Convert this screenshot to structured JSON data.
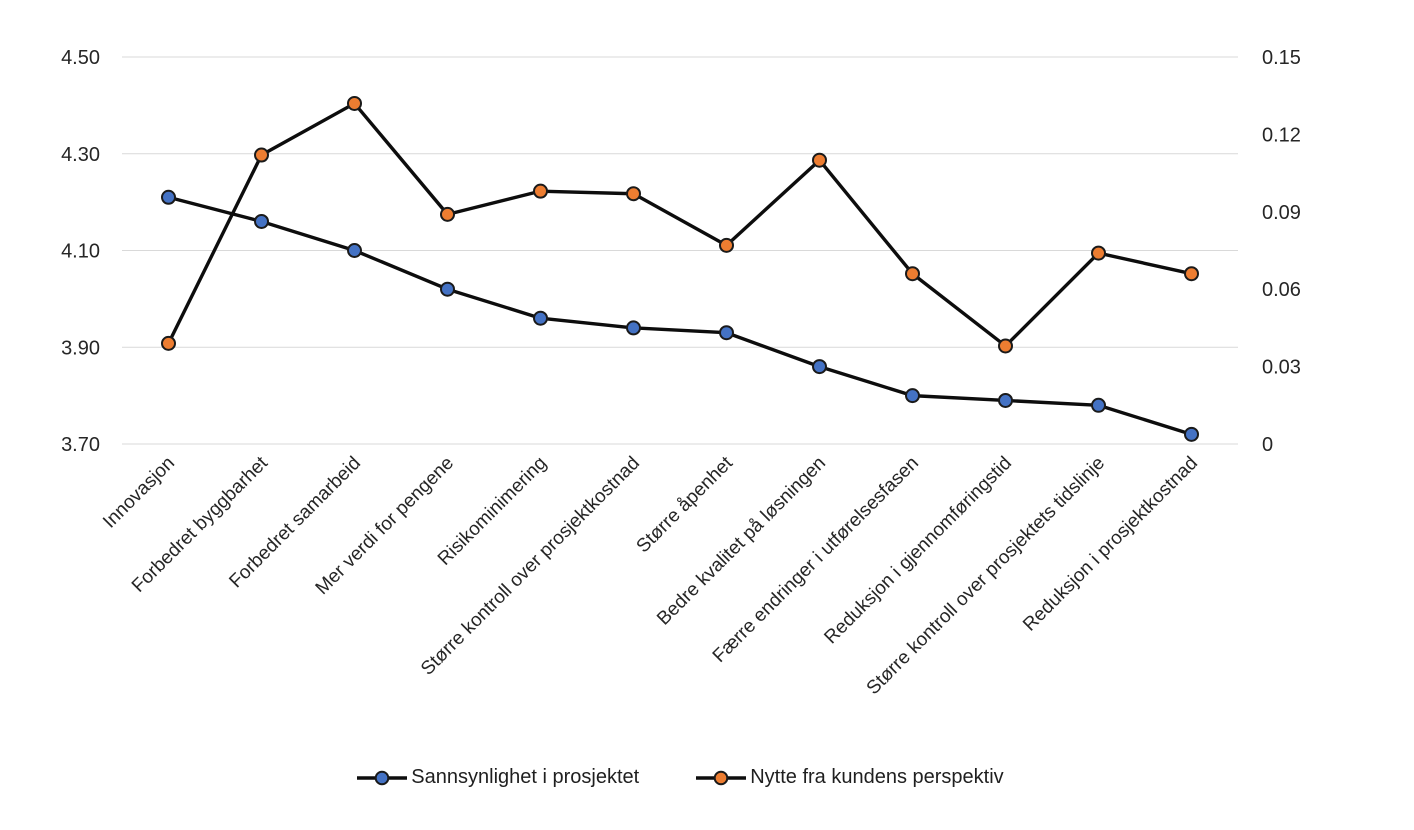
{
  "chart_data": {
    "type": "line",
    "title": "",
    "xlabel": "",
    "ylabel": "",
    "categories": [
      "Innovasjon",
      "Forbedret byggbarhet",
      "Forbedret samarbeid",
      "Mer verdi for pengene",
      "Risikominimering",
      "Større kontroll over prosjektkostnad",
      "Større åpenhet",
      "Bedre kvalitet på løsningen",
      "Færre endringer i utførelsesfasen",
      "Reduksjon i gjennomføringstid",
      "Større kontroll over prosjektets tidslinje",
      "Reduksjon i prosjektkostnad"
    ],
    "series": [
      {
        "name": "Sannsynlighet i prosjektet",
        "axis": "left",
        "marker_color": "#4472C4",
        "line_color": "#0d0d0d",
        "values": [
          4.21,
          4.16,
          4.1,
          4.02,
          3.96,
          3.94,
          3.93,
          3.86,
          3.8,
          3.79,
          3.78,
          3.72
        ]
      },
      {
        "name": "Nytte fra kundens perspektiv",
        "axis": "right",
        "marker_color": "#ED7D31",
        "line_color": "#0d0d0d",
        "values": [
          0.039,
          0.112,
          0.132,
          0.089,
          0.098,
          0.097,
          0.077,
          0.11,
          0.066,
          0.038,
          0.074,
          0.066
        ]
      }
    ],
    "left_axis": {
      "min": 3.7,
      "max": 4.5,
      "tick_labels": [
        "4.50",
        "4.30",
        "4.10",
        "3.90",
        "3.70"
      ]
    },
    "right_axis": {
      "min": 0,
      "max": 0.15,
      "tick_labels": [
        "0.15",
        "0.12",
        "0.09",
        "0.06",
        "0.03",
        "0"
      ]
    },
    "grid": true,
    "legend_position": "bottom"
  },
  "styles": {
    "background": "#FFFFFF",
    "gridline_color": "#D9D9D9",
    "axis_text_color": "#262626",
    "category_text_color": "#262626",
    "marker_outline_color": "#1a1a1a"
  }
}
